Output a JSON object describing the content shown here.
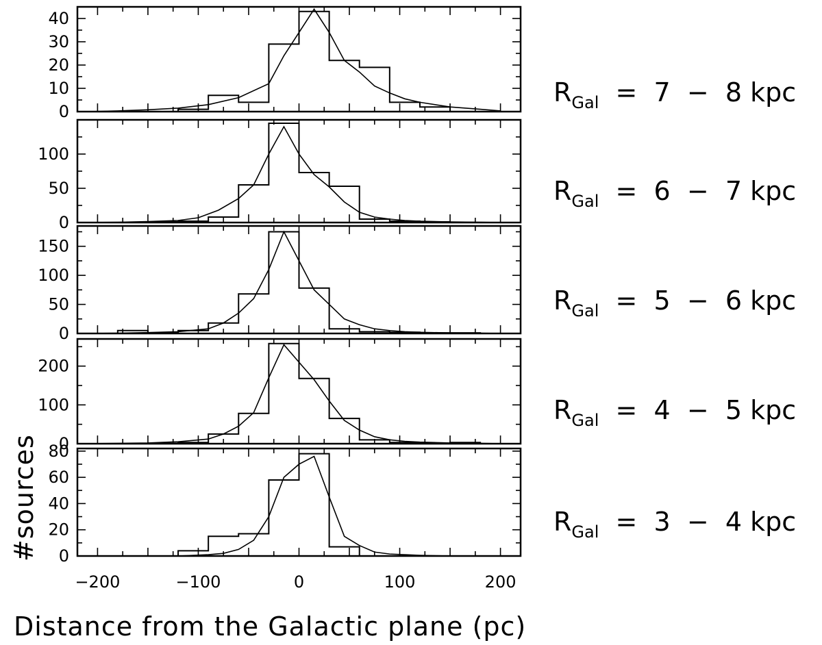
{
  "figure": {
    "xlabel": "Distance from the Galactic plane (pc)",
    "ylabel": "#sources"
  },
  "chart_data": [
    {
      "type": "bar",
      "label_main": "R",
      "label_sub": "Gal",
      "label_rest": " = 7 − 8 kpc",
      "xlim": [
        -220,
        220
      ],
      "ylim": [
        0,
        45
      ],
      "yticks": [
        0,
        10,
        20,
        30,
        40
      ],
      "bin_edges": [
        -210,
        -180,
        -150,
        -120,
        -90,
        -60,
        -30,
        0,
        30,
        60,
        90,
        120,
        150,
        180,
        210
      ],
      "histogram": [
        0,
        0,
        0,
        1,
        7,
        4,
        29,
        43,
        22,
        19,
        4,
        2,
        0,
        0
      ],
      "model_x": [
        -210,
        -180,
        -150,
        -120,
        -90,
        -60,
        -30,
        -15,
        0,
        15,
        30,
        45,
        60,
        75,
        90,
        105,
        120,
        150,
        180,
        200
      ],
      "model_y": [
        0,
        0.3,
        0.8,
        1.5,
        3,
        6,
        12,
        24,
        34,
        44,
        34,
        22,
        17,
        11,
        8,
        5.5,
        4,
        2,
        1,
        0.3
      ]
    },
    {
      "type": "bar",
      "label_main": "R",
      "label_sub": "Gal",
      "label_rest": " = 6 − 7 kpc",
      "xlim": [
        -220,
        220
      ],
      "ylim": [
        0,
        150
      ],
      "yticks": [
        0,
        50,
        100
      ],
      "bin_edges": [
        -210,
        -180,
        -150,
        -120,
        -90,
        -60,
        -30,
        0,
        30,
        60,
        90,
        120,
        150,
        180,
        210
      ],
      "histogram": [
        0,
        0,
        1,
        2,
        8,
        55,
        145,
        73,
        53,
        5,
        2,
        1,
        0,
        0
      ],
      "model_x": [
        -210,
        -180,
        -150,
        -120,
        -100,
        -80,
        -60,
        -45,
        -30,
        -15,
        0,
        15,
        30,
        45,
        60,
        75,
        90,
        105,
        120,
        150,
        180,
        200
      ],
      "model_y": [
        0,
        0.5,
        1.5,
        3,
        7,
        18,
        35,
        55,
        100,
        140,
        100,
        70,
        52,
        30,
        15,
        8,
        5,
        3,
        2,
        1,
        0.5,
        0
      ]
    },
    {
      "type": "bar",
      "label_main": "R",
      "label_sub": "Gal",
      "label_rest": " = 5 − 6 kpc",
      "xlim": [
        -220,
        220
      ],
      "ylim": [
        0,
        185
      ],
      "yticks": [
        0,
        50,
        100,
        150
      ],
      "bin_edges": [
        -210,
        -180,
        -150,
        -120,
        -90,
        -60,
        -30,
        0,
        30,
        60,
        90,
        120,
        150,
        180,
        210
      ],
      "histogram": [
        0,
        5,
        1,
        5,
        18,
        68,
        175,
        78,
        8,
        3,
        2,
        1,
        1,
        0
      ],
      "model_x": [
        -210,
        -180,
        -150,
        -120,
        -90,
        -75,
        -60,
        -45,
        -30,
        -15,
        0,
        15,
        30,
        45,
        60,
        75,
        90,
        105,
        120,
        150,
        180,
        200
      ],
      "model_y": [
        0,
        0.5,
        1.5,
        3,
        8,
        18,
        35,
        60,
        110,
        175,
        125,
        75,
        50,
        25,
        15,
        8,
        5,
        3,
        2,
        1,
        0.5,
        0
      ]
    },
    {
      "type": "bar",
      "label_main": "R",
      "label_sub": "Gal",
      "label_rest": " = 4 − 5 kpc",
      "xlim": [
        -220,
        220
      ],
      "ylim": [
        0,
        270
      ],
      "yticks": [
        0,
        100,
        200
      ],
      "bin_edges": [
        -210,
        -180,
        -150,
        -120,
        -90,
        -60,
        -30,
        0,
        30,
        60,
        90,
        120,
        150,
        180,
        210
      ],
      "histogram": [
        0,
        0,
        1,
        3,
        25,
        78,
        258,
        168,
        65,
        10,
        3,
        1,
        3,
        0
      ],
      "model_x": [
        -210,
        -180,
        -150,
        -120,
        -90,
        -75,
        -60,
        -45,
        -30,
        -15,
        0,
        15,
        30,
        45,
        60,
        75,
        90,
        105,
        120,
        150,
        180,
        200
      ],
      "model_y": [
        0,
        1,
        2,
        5,
        12,
        25,
        45,
        80,
        170,
        255,
        210,
        165,
        110,
        60,
        35,
        18,
        10,
        6,
        4,
        2,
        1,
        0
      ]
    },
    {
      "type": "bar",
      "label_main": "R",
      "label_sub": "Gal",
      "label_rest": " = 3 − 4 kpc",
      "xlim": [
        -220,
        220
      ],
      "ylim": [
        0,
        82
      ],
      "yticks": [
        0,
        20,
        40,
        60,
        80
      ],
      "bin_edges": [
        -210,
        -180,
        -150,
        -120,
        -90,
        -60,
        -30,
        0,
        30,
        60,
        90,
        120,
        150,
        180,
        210
      ],
      "histogram": [
        0,
        0,
        0,
        4,
        15,
        17,
        58,
        78,
        7,
        0,
        0,
        0,
        0,
        0
      ],
      "model_x": [
        -210,
        -180,
        -150,
        -120,
        -90,
        -75,
        -60,
        -45,
        -30,
        -15,
        0,
        15,
        30,
        45,
        60,
        75,
        90,
        105,
        120,
        150,
        180,
        200
      ],
      "model_y": [
        0,
        0,
        0,
        0,
        1,
        2,
        5,
        12,
        30,
        60,
        70,
        76,
        45,
        15,
        8,
        3,
        1.5,
        1,
        0.5,
        0,
        0,
        0
      ]
    }
  ],
  "x_ticks": [
    -200,
    -100,
    0,
    100,
    200
  ],
  "x_tick_labels": [
    "−200",
    "−100",
    "0",
    "100",
    "200"
  ]
}
